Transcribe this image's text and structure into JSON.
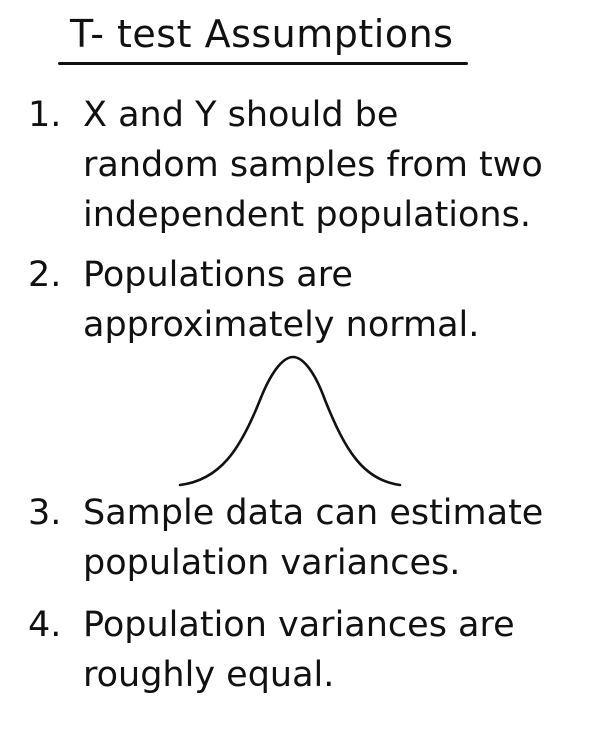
{
  "title": "T- test Assumptions",
  "items": [
    {
      "number": "1.",
      "lines": [
        "X and Y should be",
        "random samples from two",
        "independent populations."
      ]
    },
    {
      "number": "2.",
      "lines": [
        "Populations are",
        "approximately normal."
      ]
    },
    {
      "number": "3.",
      "lines": [
        "Sample data can estimate",
        "population variances."
      ]
    },
    {
      "number": "4.",
      "lines": [
        "Population variances are",
        "roughly equal."
      ]
    }
  ],
  "icons": {
    "curve": "bell-curve-icon"
  },
  "colors": {
    "ink": "#111111",
    "background": "#ffffff"
  }
}
